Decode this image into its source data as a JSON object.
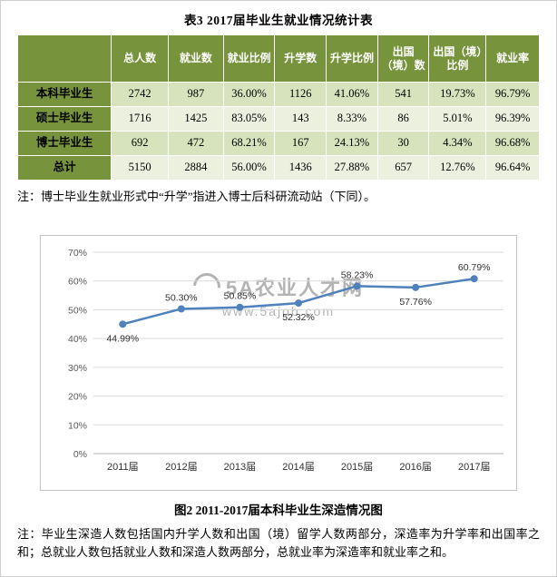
{
  "colors": {
    "header_bg": "#77933C",
    "header_text": "#FFFFFF",
    "band1": "#D6E3BC",
    "band2": "#EBF1DE",
    "line": "#4F81BD",
    "grid": "#D9D9D9",
    "watermark": "#8C8C8C"
  },
  "table": {
    "title": "表3  2017届毕业生就业情况统计表",
    "headers": [
      "总人数",
      "就业数",
      "就业比例",
      "升学数",
      "升学比例",
      "出国（境）数",
      "出国（境）比例",
      "就业率"
    ],
    "rows": [
      {
        "label": "本科毕业生",
        "values": [
          "2742",
          "987",
          "36.00%",
          "1126",
          "41.06%",
          "541",
          "19.73%",
          "96.79%"
        ]
      },
      {
        "label": "硕士毕业生",
        "values": [
          "1716",
          "1425",
          "83.05%",
          "143",
          "8.33%",
          "86",
          "5.01%",
          "96.39%"
        ]
      },
      {
        "label": "博士毕业生",
        "values": [
          "692",
          "472",
          "68.21%",
          "167",
          "24.13%",
          "30",
          "4.34%",
          "96.68%"
        ]
      },
      {
        "label": "总计",
        "values": [
          "5150",
          "2884",
          "56.00%",
          "1436",
          "27.88%",
          "657",
          "12.76%",
          "96.64%"
        ]
      }
    ],
    "note": "注：博士毕业生就业形式中“升学”指进入博士后科研流动站（下同）。"
  },
  "chart_data": {
    "type": "line",
    "categories": [
      "2011届",
      "2012届",
      "2013届",
      "2014届",
      "2015届",
      "2016届",
      "2017届"
    ],
    "values": [
      44.99,
      50.3,
      50.85,
      52.32,
      58.23,
      57.76,
      60.79
    ],
    "title": "",
    "xlabel": "",
    "ylabel": "",
    "ylim": [
      0,
      70
    ],
    "ytick_step": 10,
    "grid": true,
    "legend": "none",
    "marker": "circle",
    "label_positions": [
      "below",
      "above",
      "above",
      "below",
      "above",
      "below",
      "above"
    ]
  },
  "chart": {
    "caption": "图2  2011-2017届本科毕业生深造情况图",
    "watermark_title": "5A农业人才网",
    "watermark_url": "www.5ajob.com"
  },
  "footnote": "注：毕业生深造人数包括国内升学人数和出国（境）留学人数两部分，深造率为升学率和出国率之和；总就业人数包括就业人数和深造人数两部分，总就业率为深造率和就业率之和。"
}
